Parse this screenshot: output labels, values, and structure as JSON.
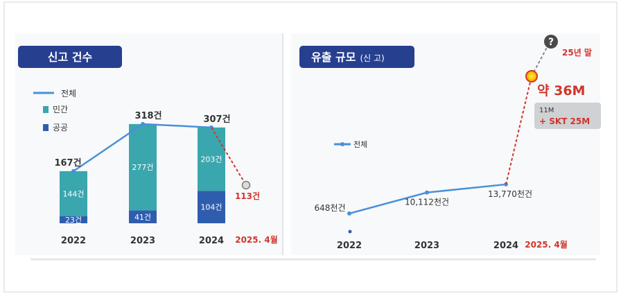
{
  "panels": {
    "left_title": "신고 건수",
    "right_title_main": "유출 규모",
    "right_title_sub": "(신 고)"
  },
  "chart_data": [
    {
      "type": "bar",
      "stacked": true,
      "categories": [
        "2022",
        "2023",
        "2024"
      ],
      "series": [
        {
          "name": "민간",
          "values": [
            144,
            277,
            203
          ],
          "labels": [
            "144건",
            "277건",
            "203건"
          ],
          "color": "#3AA6AE"
        },
        {
          "name": "공공",
          "values": [
            23,
            41,
            104
          ],
          "labels": [
            "23건",
            "41건",
            "104건"
          ],
          "color": "#2F5DAE"
        }
      ],
      "line": {
        "name": "전체",
        "values": [
          167,
          318,
          307
        ],
        "labels": [
          "167건",
          "318건",
          "307건"
        ],
        "color": "#4A90D9"
      },
      "projection": {
        "category": "2025. 4월",
        "value": 113,
        "label": "113건",
        "color": "#D0352B"
      },
      "legend_position": "top-left",
      "ylim": [
        0,
        340
      ]
    },
    {
      "type": "line",
      "categories": [
        "2022",
        "2023",
        "2024"
      ],
      "series": [
        {
          "name": "전체",
          "values": [
            648,
            10112,
            13770
          ],
          "labels": [
            "648천건",
            "10,112천건",
            "13,770천건"
          ],
          "color": "#4A90D9"
        }
      ],
      "projection": {
        "category": "2025. 4월",
        "value_label": "약 36M",
        "breakdown": [
          "11M",
          "+ SKT 25M"
        ],
        "unknown_label": "25년 말",
        "color": "#D0352B"
      },
      "legend_position": "left"
    }
  ],
  "colors": {
    "title_bg": "#263F8F",
    "title_text": "#ffffff",
    "red": "#D0352B",
    "axis_text": "#333333"
  }
}
